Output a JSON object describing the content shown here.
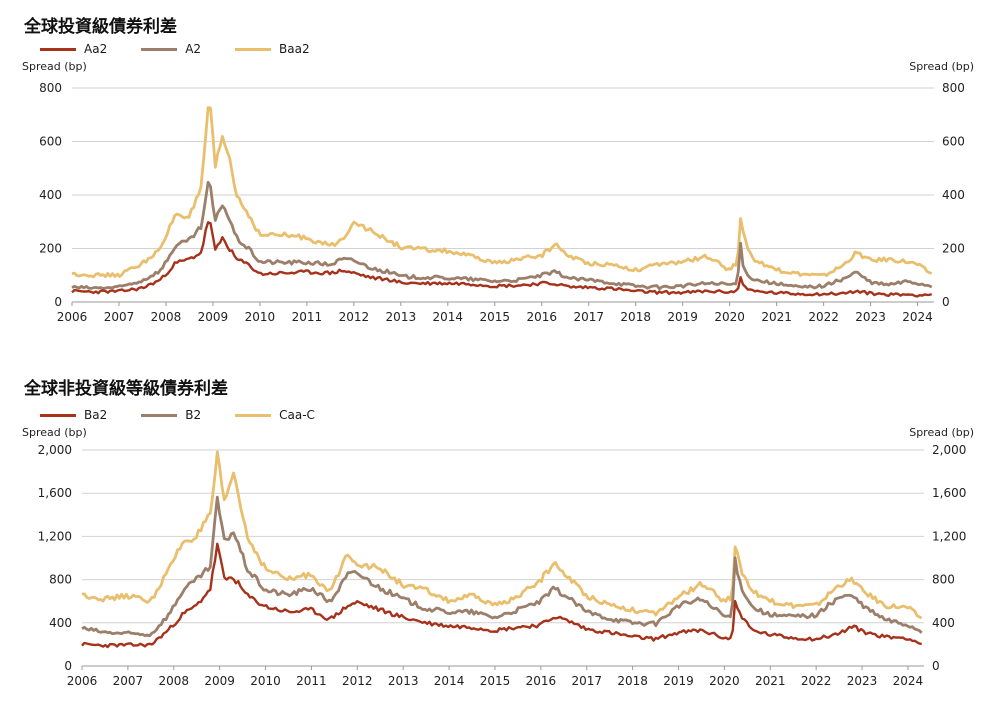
{
  "colors": {
    "series1": "#a6321b",
    "series2": "#9c7f6b",
    "series3": "#e9bf6e",
    "grid": "#d2d2d2"
  },
  "chart_data": [
    {
      "type": "line",
      "title": "全球投資級債券利差",
      "ylabel": "Spread (bp)",
      "ylabel_right": "Spread (bp)",
      "ylim": [
        0,
        800
      ],
      "yticks": [
        "0",
        "200",
        "400",
        "600",
        "800"
      ],
      "xlim": [
        2006,
        2024.35
      ],
      "xticks": [
        "2006",
        "2007",
        "2008",
        "2009",
        "2010",
        "2011",
        "2012",
        "2013",
        "2014",
        "2015",
        "2016",
        "2017",
        "2018",
        "2019",
        "2020",
        "2021",
        "2022",
        "2023",
        "2024"
      ],
      "grid": true,
      "legend": "top-left",
      "x": [
        2006,
        2006.5,
        2007,
        2007.5,
        2007.9,
        2008.2,
        2008.5,
        2008.75,
        2008.92,
        2009.05,
        2009.2,
        2009.35,
        2009.5,
        2009.75,
        2010,
        2010.5,
        2011,
        2011.5,
        2011.75,
        2012,
        2012.4,
        2012.8,
        2013,
        2013.5,
        2014,
        2014.5,
        2015,
        2015.5,
        2016,
        2016.3,
        2016.6,
        2017,
        2017.5,
        2018,
        2018.5,
        2019,
        2019.5,
        2020,
        2020.17,
        2020.22,
        2020.3,
        2020.5,
        2021,
        2021.5,
        2022,
        2022.4,
        2022.7,
        2023,
        2023.4,
        2023.8,
        2024,
        2024.3
      ],
      "series": [
        {
          "name": "Aa2",
          "values": [
            40,
            38,
            40,
            52,
            85,
            145,
            160,
            185,
            320,
            190,
            240,
            200,
            160,
            140,
            105,
            108,
            112,
            108,
            118,
            108,
            90,
            82,
            72,
            70,
            70,
            68,
            60,
            62,
            70,
            68,
            56,
            55,
            50,
            40,
            36,
            35,
            40,
            38,
            40,
            95,
            60,
            40,
            34,
            30,
            30,
            32,
            40,
            32,
            28,
            28,
            26,
            28
          ]
        },
        {
          "name": "A2",
          "values": [
            55,
            52,
            55,
            80,
            120,
            210,
            230,
            280,
            460,
            300,
            370,
            310,
            240,
            200,
            150,
            148,
            148,
            140,
            160,
            155,
            125,
            110,
            95,
            92,
            90,
            85,
            78,
            82,
            100,
            112,
            88,
            82,
            72,
            60,
            55,
            60,
            70,
            65,
            70,
            230,
            120,
            85,
            68,
            55,
            60,
            85,
            112,
            72,
            65,
            78,
            70,
            60
          ]
        },
        {
          "name": "Baa2",
          "values": [
            105,
            100,
            100,
            145,
            200,
            330,
            320,
            420,
            770,
            500,
            620,
            540,
            400,
            330,
            250,
            250,
            240,
            210,
            230,
            305,
            260,
            225,
            205,
            195,
            190,
            170,
            145,
            160,
            175,
            215,
            170,
            145,
            140,
            120,
            140,
            150,
            170,
            120,
            150,
            335,
            240,
            160,
            120,
            105,
            98,
            135,
            185,
            155,
            160,
            150,
            140,
            105
          ]
        }
      ]
    },
    {
      "type": "line",
      "title": "全球非投資級等級債券利差",
      "ylabel": "Spread (bp)",
      "ylabel_right": "Spread (bp)",
      "ylim": [
        0,
        2000
      ],
      "yticks": [
        "0",
        "400",
        "800",
        "1,200",
        "1,600",
        "2,000"
      ],
      "xlim": [
        2006,
        2024.35
      ],
      "xticks": [
        "2006",
        "2007",
        "2008",
        "2009",
        "2010",
        "2011",
        "2012",
        "2013",
        "2014",
        "2015",
        "2016",
        "2017",
        "2018",
        "2019",
        "2020",
        "2021",
        "2022",
        "2023",
        "2024"
      ],
      "grid": true,
      "legend": "top-left",
      "x": [
        2006,
        2006.5,
        2007,
        2007.5,
        2007.9,
        2008.2,
        2008.5,
        2008.8,
        2008.95,
        2009.1,
        2009.3,
        2009.6,
        2010,
        2010.5,
        2011,
        2011.4,
        2011.8,
        2012,
        2012.5,
        2013,
        2013.5,
        2014,
        2014.5,
        2015,
        2015.5,
        2016,
        2016.3,
        2016.7,
        2017,
        2017.5,
        2018,
        2018.5,
        2019,
        2019.5,
        2020,
        2020.17,
        2020.22,
        2020.35,
        2020.6,
        2021,
        2021.5,
        2022,
        2022.5,
        2022.8,
        2023,
        2023.5,
        2024,
        2024.3
      ],
      "series": [
        {
          "name": "Ba2",
          "values": [
            200,
            190,
            195,
            195,
            340,
            480,
            560,
            720,
            1130,
            800,
            820,
            650,
            550,
            500,
            520,
            430,
            560,
            590,
            520,
            450,
            400,
            370,
            360,
            330,
            360,
            380,
            460,
            400,
            340,
            310,
            270,
            250,
            310,
            330,
            260,
            250,
            600,
            480,
            330,
            290,
            260,
            250,
            300,
            370,
            320,
            270,
            260,
            200
          ]
        },
        {
          "name": "B2",
          "values": [
            350,
            310,
            300,
            290,
            480,
            700,
            800,
            920,
            1550,
            1150,
            1250,
            900,
            700,
            660,
            720,
            590,
            850,
            860,
            720,
            620,
            530,
            500,
            500,
            450,
            520,
            600,
            720,
            600,
            500,
            440,
            400,
            390,
            560,
            620,
            460,
            460,
            1000,
            750,
            550,
            470,
            460,
            470,
            640,
            650,
            560,
            430,
            380,
            320
          ]
        },
        {
          "name": "Caa-C",
          "values": [
            660,
            620,
            650,
            600,
            900,
            1150,
            1200,
            1400,
            1950,
            1500,
            1800,
            1200,
            900,
            800,
            850,
            680,
            1050,
            950,
            900,
            750,
            700,
            600,
            650,
            560,
            640,
            800,
            950,
            780,
            650,
            570,
            520,
            480,
            640,
            760,
            600,
            640,
            1150,
            900,
            700,
            600,
            560,
            560,
            750,
            800,
            700,
            560,
            540,
            440
          ]
        }
      ]
    }
  ]
}
